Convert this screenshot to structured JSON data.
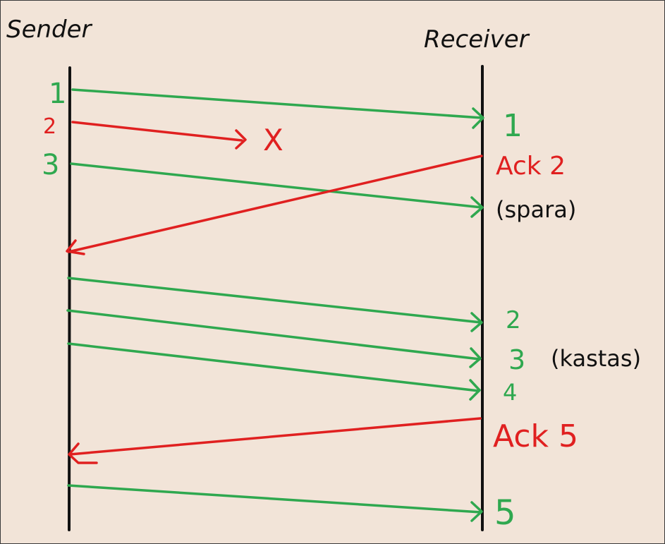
{
  "diagram": {
    "lifelines": {
      "sender_label": "Sender",
      "receiver_label": "Receiver"
    },
    "colors": {
      "data_packet": "#2fa84f",
      "ack_or_loss": "#e02020",
      "lifeline": "#111111",
      "background": "#f2e4d8"
    },
    "sender_marks": {
      "seq1": "1",
      "seq2": "2",
      "seq3": "3"
    },
    "lost_marker": "X",
    "receiver_notes": {
      "recv1": "1",
      "ack2": "Ack 2",
      "store_note": "(spara)",
      "recv2": "2",
      "recv3": "3",
      "discard_note": "(kastas)",
      "recv4": "4",
      "ack5": "Ack 5",
      "recv5": "5"
    }
  }
}
